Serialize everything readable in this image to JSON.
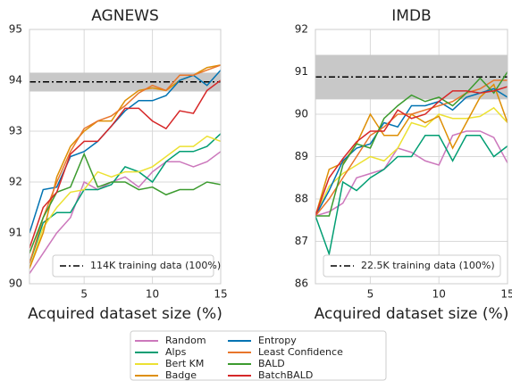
{
  "chart_data": [
    {
      "type": "line",
      "title": "AGNEWS",
      "x_label": "Acquired dataset size (%)",
      "x": [
        1,
        2,
        3,
        4,
        5,
        6,
        7,
        8,
        9,
        10,
        11,
        12,
        13,
        14,
        15
      ],
      "xlim": [
        1,
        15
      ],
      "xticks": [
        5,
        10,
        15
      ],
      "ylim": [
        90,
        95
      ],
      "yticks": [
        90,
        91,
        92,
        93,
        94,
        95
      ],
      "grid": true,
      "series": [
        {
          "name": "Random",
          "color": "#cc78bc",
          "values": [
            90.2,
            90.6,
            91.0,
            91.3,
            92.0,
            91.85,
            92.0,
            92.1,
            91.9,
            92.2,
            92.4,
            92.4,
            92.3,
            92.4,
            92.6
          ]
        },
        {
          "name": "Alps",
          "color": "#029e73",
          "values": [
            90.4,
            91.2,
            91.4,
            91.4,
            91.85,
            91.85,
            91.95,
            92.3,
            92.2,
            92.0,
            92.4,
            92.6,
            92.6,
            92.7,
            92.95
          ]
        },
        {
          "name": "Bert KM",
          "color": "#ece133",
          "values": [
            90.3,
            91.1,
            91.5,
            91.8,
            91.85,
            92.2,
            92.1,
            92.2,
            92.2,
            92.3,
            92.5,
            92.7,
            92.7,
            92.9,
            92.8
          ]
        },
        {
          "name": "Badge",
          "color": "#de8f05",
          "values": [
            90.3,
            91.0,
            92.1,
            92.7,
            93.0,
            93.2,
            93.2,
            93.6,
            93.8,
            93.85,
            93.8,
            94.0,
            94.1,
            94.25,
            94.3
          ]
        },
        {
          "name": "Entropy",
          "color": "#0173b2",
          "values": [
            91.0,
            91.85,
            91.9,
            92.5,
            92.6,
            92.8,
            93.1,
            93.4,
            93.6,
            93.6,
            93.7,
            94.0,
            94.1,
            93.9,
            94.2
          ]
        },
        {
          "name": "Least Confidence",
          "color": "#e8762b",
          "values": [
            90.4,
            91.3,
            92.0,
            92.6,
            93.05,
            93.2,
            93.3,
            93.5,
            93.75,
            93.9,
            93.8,
            94.1,
            94.1,
            94.2,
            94.3
          ]
        },
        {
          "name": "BALD",
          "color": "#3c9b2f",
          "values": [
            90.6,
            91.3,
            91.8,
            91.9,
            92.55,
            91.9,
            92.0,
            92.0,
            91.85,
            91.9,
            91.75,
            91.85,
            91.85,
            92.0,
            91.95
          ]
        },
        {
          "name": "BatchBALD",
          "color": "#d62728",
          "values": [
            90.7,
            91.5,
            91.8,
            92.55,
            92.8,
            92.8,
            93.1,
            93.45,
            93.45,
            93.2,
            93.05,
            93.4,
            93.35,
            93.8,
            94.0
          ]
        }
      ],
      "reference": {
        "name": "114K training data (100%)",
        "value": 93.97,
        "band": [
          93.78,
          94.15
        ],
        "color": "#000000",
        "band_color": "#c8c8c8"
      }
    },
    {
      "type": "line",
      "title": "IMDB",
      "x_label": "Acquired dataset size (%)",
      "x": [
        1,
        2,
        3,
        4,
        5,
        6,
        7,
        8,
        9,
        10,
        11,
        12,
        13,
        14,
        15
      ],
      "xlim": [
        1,
        15
      ],
      "xticks": [
        5,
        10,
        15
      ],
      "ylim": [
        86,
        92
      ],
      "yticks": [
        86,
        87,
        88,
        89,
        90,
        91,
        92
      ],
      "grid": true,
      "series": [
        {
          "name": "Random",
          "color": "#cc78bc",
          "values": [
            87.6,
            87.7,
            87.9,
            88.5,
            88.6,
            88.7,
            89.2,
            89.1,
            88.9,
            88.8,
            89.5,
            89.6,
            89.6,
            89.45,
            88.85
          ]
        },
        {
          "name": "Alps",
          "color": "#029e73",
          "values": [
            87.6,
            86.7,
            88.4,
            88.2,
            88.5,
            88.7,
            89.0,
            89.0,
            89.5,
            89.5,
            88.9,
            89.5,
            89.5,
            89.0,
            89.25
          ]
        },
        {
          "name": "Bert KM",
          "color": "#ece133",
          "values": [
            87.6,
            88.3,
            88.6,
            88.8,
            89.0,
            88.9,
            89.2,
            89.8,
            89.7,
            90.0,
            89.9,
            89.9,
            89.95,
            90.15,
            89.8
          ]
        },
        {
          "name": "Badge",
          "color": "#de8f05",
          "values": [
            87.6,
            88.7,
            88.85,
            89.3,
            90.0,
            89.5,
            89.5,
            90.0,
            89.8,
            89.95,
            89.2,
            89.8,
            90.4,
            90.7,
            89.8
          ]
        },
        {
          "name": "Entropy",
          "color": "#0173b2",
          "values": [
            87.6,
            88.2,
            88.9,
            89.2,
            89.3,
            89.8,
            89.7,
            90.2,
            90.2,
            90.3,
            90.1,
            90.4,
            90.5,
            90.6,
            90.4
          ]
        },
        {
          "name": "Least Confidence",
          "color": "#e8762b",
          "values": [
            87.6,
            88.0,
            88.5,
            89.0,
            89.5,
            89.7,
            90.0,
            90.0,
            90.1,
            90.2,
            90.3,
            90.5,
            90.6,
            90.8,
            90.8
          ]
        },
        {
          "name": "BALD",
          "color": "#3c9b2f",
          "values": [
            87.6,
            87.6,
            88.8,
            89.3,
            89.2,
            89.9,
            90.2,
            90.45,
            90.3,
            90.4,
            90.2,
            90.5,
            90.85,
            90.5,
            91.0
          ]
        },
        {
          "name": "BatchBALD",
          "color": "#d62728",
          "values": [
            87.6,
            88.5,
            88.95,
            89.35,
            89.6,
            89.6,
            90.1,
            89.9,
            90.0,
            90.3,
            90.55,
            90.55,
            90.5,
            90.55,
            90.65
          ]
        }
      ],
      "reference": {
        "name": "22.5K training data (100%)",
        "value": 90.88,
        "band": [
          90.35,
          91.4
        ],
        "color": "#000000",
        "band_color": "#c8c8c8"
      }
    }
  ]
}
